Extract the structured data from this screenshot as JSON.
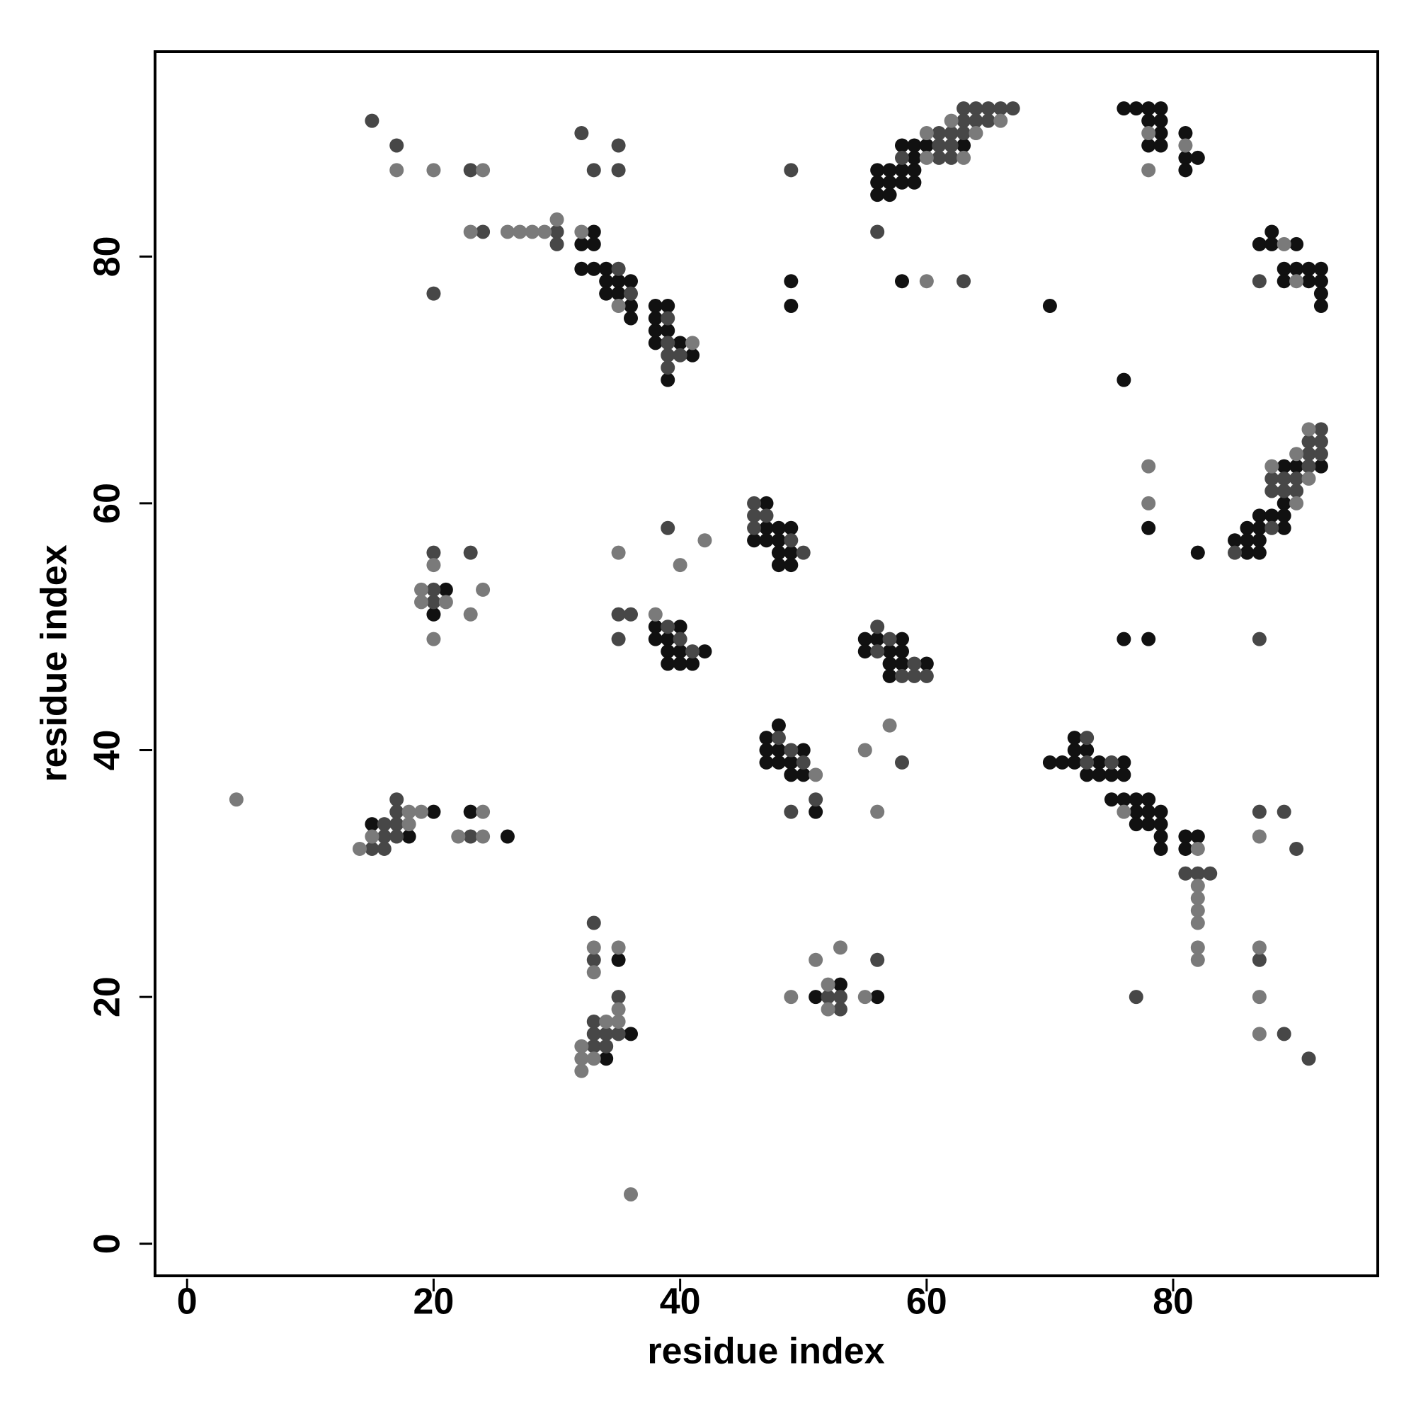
{
  "chart_data": {
    "type": "scatter",
    "xlabel": "residue index",
    "ylabel": "residue index",
    "xlim": [
      -2.6,
      96.6
    ],
    "ylim": [
      -2.6,
      96.6
    ],
    "xticks": [
      0,
      20,
      40,
      60,
      80
    ],
    "yticks": [
      0,
      20,
      40,
      60,
      80
    ],
    "series": [
      {
        "color": "#111111",
        "x": [
          33,
          32,
          33,
          32,
          33,
          34,
          34,
          35,
          36,
          34,
          35,
          36,
          36,
          38,
          39,
          38,
          39,
          38,
          40,
          41,
          39,
          38,
          49,
          49,
          58,
          59,
          60,
          63,
          59,
          56,
          57,
          58,
          59,
          56,
          57,
          58,
          59,
          56,
          57,
          58,
          76,
          77,
          78,
          79,
          78,
          79,
          79,
          78,
          79,
          81,
          81,
          82,
          81,
          70,
          76,
          88,
          87,
          88,
          90,
          89,
          90,
          91,
          92,
          89,
          91,
          92,
          92,
          92,
          89,
          90,
          92,
          89,
          87,
          88,
          89,
          86,
          87,
          89,
          85,
          86,
          87,
          86,
          87,
          78,
          82,
          76,
          78,
          47,
          47,
          48,
          49,
          46,
          47,
          48,
          48,
          49,
          48,
          49,
          21,
          20,
          38,
          40,
          38,
          39,
          39,
          40,
          42,
          39,
          40,
          41,
          55,
          56,
          58,
          55,
          57,
          58,
          57,
          58,
          60,
          57,
          48,
          47,
          47,
          48,
          50,
          47,
          48,
          49,
          49,
          50,
          51,
          72,
          72,
          73,
          70,
          71,
          72,
          74,
          76,
          73,
          74,
          75,
          76,
          75,
          76,
          77,
          78,
          77,
          78,
          79,
          77,
          78,
          79,
          79,
          81,
          82,
          79,
          81,
          20,
          15,
          18,
          23,
          26,
          35,
          36,
          34,
          53,
          51,
          56
        ],
        "y": [
          82,
          81,
          81,
          79,
          79,
          79,
          78,
          78,
          78,
          77,
          77,
          76,
          75,
          76,
          76,
          74,
          74,
          73,
          73,
          72,
          70,
          75,
          78,
          76,
          89,
          89,
          89,
          89,
          88,
          87,
          87,
          87,
          87,
          86,
          86,
          86,
          86,
          85,
          85,
          78,
          92,
          92,
          92,
          92,
          91,
          91,
          90,
          89,
          89,
          90,
          88,
          88,
          87,
          76,
          70,
          82,
          81,
          81,
          81,
          79,
          79,
          79,
          79,
          78,
          78,
          78,
          77,
          76,
          63,
          63,
          63,
          60,
          59,
          59,
          59,
          58,
          58,
          58,
          57,
          57,
          57,
          56,
          56,
          58,
          56,
          49,
          49,
          60,
          58,
          58,
          58,
          57,
          57,
          57,
          56,
          56,
          55,
          55,
          53,
          51,
          50,
          50,
          49,
          49,
          48,
          48,
          48,
          47,
          47,
          47,
          49,
          49,
          49,
          48,
          48,
          48,
          47,
          47,
          47,
          46,
          42,
          41,
          40,
          40,
          40,
          39,
          39,
          39,
          38,
          38,
          35,
          41,
          40,
          40,
          39,
          39,
          39,
          39,
          39,
          38,
          38,
          38,
          38,
          36,
          36,
          36,
          36,
          35,
          35,
          35,
          34,
          34,
          34,
          33,
          33,
          33,
          32,
          32,
          35,
          34,
          33,
          35,
          33,
          23,
          17,
          15,
          21,
          20,
          20
        ]
      },
      {
        "color": "#474747",
        "x": [
          15,
          17,
          23,
          24,
          30,
          30,
          32,
          33,
          35,
          35,
          20,
          35,
          36,
          39,
          39,
          39,
          40,
          39,
          49,
          56,
          63,
          64,
          65,
          66,
          67,
          63,
          64,
          65,
          61,
          62,
          63,
          61,
          62,
          58,
          61,
          62,
          63,
          87,
          92,
          91,
          92,
          91,
          92,
          91,
          88,
          89,
          90,
          88,
          89,
          90,
          88,
          85,
          87,
          46,
          46,
          47,
          46,
          49,
          50,
          39,
          20,
          23,
          20,
          20,
          35,
          36,
          35,
          39,
          40,
          41,
          56,
          57,
          56,
          59,
          58,
          59,
          60,
          48,
          49,
          50,
          51,
          49,
          58,
          73,
          73,
          75,
          81,
          82,
          83,
          87,
          89,
          90,
          87,
          89,
          91,
          77,
          17,
          17,
          16,
          17,
          16,
          17,
          15,
          16,
          23,
          33,
          33,
          35,
          33,
          33,
          34,
          35,
          33,
          34,
          56,
          52,
          53,
          53
        ],
        "y": [
          91,
          89,
          87,
          82,
          82,
          81,
          90,
          87,
          89,
          87,
          77,
          79,
          77,
          75,
          73,
          72,
          72,
          71,
          87,
          82,
          92,
          92,
          92,
          92,
          92,
          91,
          91,
          91,
          90,
          90,
          90,
          89,
          89,
          88,
          88,
          88,
          78,
          78,
          66,
          65,
          65,
          64,
          64,
          63,
          62,
          62,
          62,
          61,
          61,
          61,
          58,
          56,
          49,
          60,
          59,
          59,
          58,
          57,
          56,
          58,
          56,
          56,
          53,
          52,
          51,
          51,
          49,
          50,
          49,
          48,
          50,
          49,
          48,
          47,
          46,
          46,
          46,
          41,
          40,
          39,
          36,
          35,
          39,
          41,
          39,
          39,
          30,
          30,
          30,
          35,
          35,
          32,
          23,
          17,
          15,
          20,
          36,
          35,
          34,
          34,
          33,
          33,
          32,
          32,
          33,
          26,
          23,
          20,
          18,
          17,
          17,
          17,
          16,
          16,
          23,
          20,
          20,
          19
        ]
      },
      {
        "color": "#7a7a7a",
        "x": [
          17,
          20,
          24,
          23,
          26,
          27,
          28,
          29,
          30,
          32,
          35,
          41,
          66,
          62,
          60,
          64,
          60,
          63,
          60,
          78,
          78,
          81,
          89,
          90,
          91,
          90,
          88,
          91,
          90,
          78,
          78,
          42,
          40,
          35,
          20,
          19,
          24,
          19,
          21,
          23,
          20,
          38,
          51,
          55,
          57,
          56,
          76,
          82,
          82,
          82,
          82,
          82,
          82,
          82,
          87,
          87,
          87,
          87,
          4,
          18,
          19,
          18,
          15,
          14,
          24,
          22,
          24,
          33,
          35,
          33,
          35,
          34,
          35,
          32,
          32,
          33,
          32,
          36,
          51,
          53,
          52,
          49,
          55,
          52
        ],
        "y": [
          87,
          87,
          87,
          82,
          82,
          82,
          82,
          82,
          83,
          82,
          76,
          73,
          91,
          91,
          90,
          90,
          88,
          88,
          78,
          90,
          87,
          89,
          81,
          78,
          66,
          64,
          63,
          62,
          60,
          63,
          60,
          57,
          55,
          56,
          55,
          53,
          53,
          52,
          52,
          51,
          49,
          51,
          38,
          40,
          42,
          35,
          35,
          32,
          29,
          28,
          27,
          26,
          24,
          23,
          33,
          24,
          20,
          17,
          36,
          35,
          35,
          34,
          33,
          32,
          35,
          33,
          33,
          24,
          24,
          22,
          19,
          18,
          18,
          16,
          15,
          15,
          14,
          4,
          23,
          24,
          21,
          20,
          20,
          19
        ]
      }
    ]
  }
}
